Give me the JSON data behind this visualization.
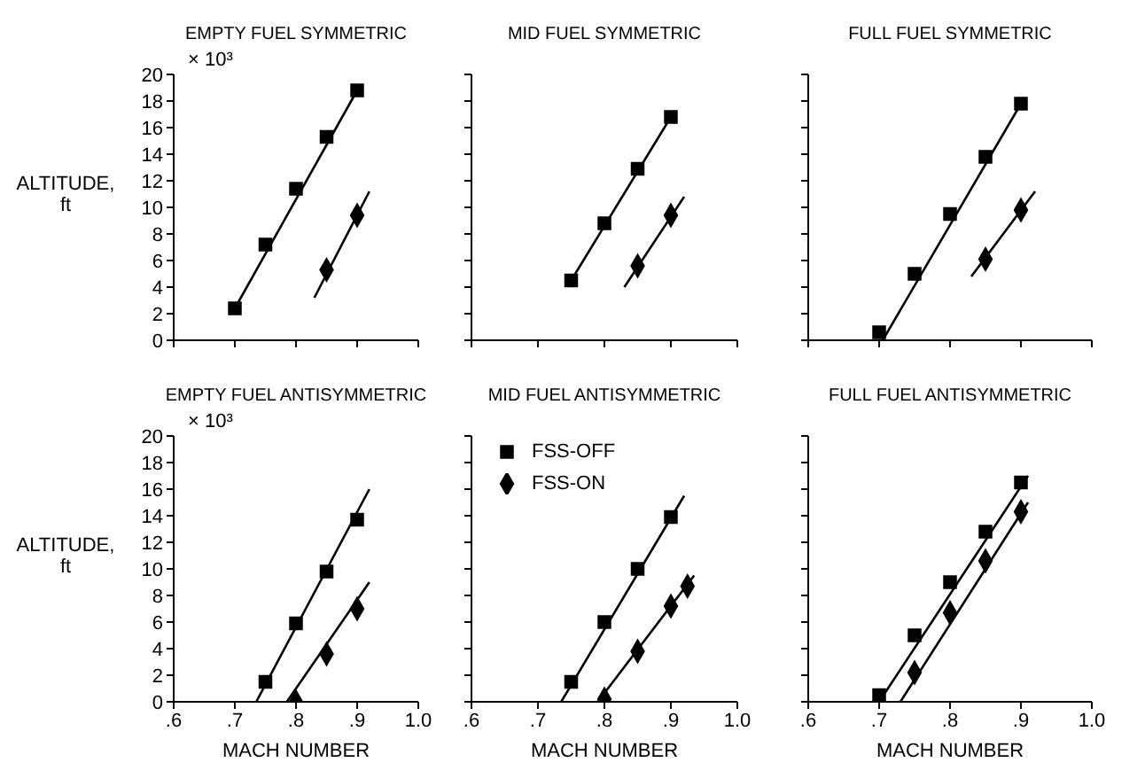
{
  "chart_data": [
    {
      "type": "scatter",
      "title": "EMPTY FUEL SYMMETRIC",
      "ylabel": "ALTITUDE, ft",
      "annotations": [
        "× 10³"
      ],
      "xlim": [
        0.6,
        1.0
      ],
      "xticks": [
        {
          "value": 0.6,
          "label": null
        },
        {
          "value": 0.7,
          "label": null
        },
        {
          "value": 0.8,
          "label": null
        },
        {
          "value": 0.9,
          "label": null
        },
        {
          "value": 1.0,
          "label": null
        }
      ],
      "ylim": [
        0,
        20
      ],
      "yticks": [
        0,
        2,
        4,
        6,
        8,
        10,
        12,
        14,
        16,
        18,
        20
      ],
      "tick_labels": "y",
      "legend": false,
      "series": [
        {
          "type": "line",
          "color": "#000000",
          "marker": "none",
          "x": [
            0.7,
            0.9
          ],
          "values": [
            2.4,
            18.8
          ]
        },
        {
          "type": "line",
          "color": "#000000",
          "marker": "none",
          "x": [
            0.83,
            0.92
          ],
          "values": [
            3.2,
            11.2
          ]
        },
        {
          "type": "scatter",
          "color": "#000000",
          "marker": "square",
          "x": [
            0.7,
            0.75,
            0.8,
            0.85,
            0.9
          ],
          "values": [
            2.4,
            7.2,
            11.4,
            15.3,
            18.8
          ]
        },
        {
          "type": "scatter",
          "color": "#000000",
          "marker": "diamond",
          "x": [
            0.85,
            0.9
          ],
          "values": [
            5.3,
            9.4
          ]
        }
      ]
    },
    {
      "type": "scatter",
      "title": "MID FUEL SYMMETRIC",
      "xlim": [
        0.6,
        1.0
      ],
      "xticks": [
        {
          "value": 0.6,
          "label": null
        },
        {
          "value": 0.7,
          "label": null
        },
        {
          "value": 0.8,
          "label": null
        },
        {
          "value": 0.9,
          "label": null
        },
        {
          "value": 1.0,
          "label": null
        }
      ],
      "ylim": [
        0,
        20
      ],
      "yticks": [
        {
          "value": 0,
          "label": null
        },
        {
          "value": 2,
          "label": null
        },
        {
          "value": 4,
          "label": null
        },
        {
          "value": 6,
          "label": null
        },
        {
          "value": 8,
          "label": null
        },
        {
          "value": 10,
          "label": null
        },
        {
          "value": 12,
          "label": null
        },
        {
          "value": 14,
          "label": null
        },
        {
          "value": 16,
          "label": null
        },
        {
          "value": 18,
          "label": null
        },
        {
          "value": 20,
          "label": null
        }
      ],
      "tick_labels": false,
      "legend": false,
      "series": [
        {
          "type": "line",
          "color": "#000000",
          "marker": "none",
          "x": [
            0.75,
            0.9
          ],
          "values": [
            4.5,
            16.8
          ]
        },
        {
          "type": "line",
          "color": "#000000",
          "marker": "none",
          "x": [
            0.83,
            0.92
          ],
          "values": [
            4.0,
            10.8
          ]
        },
        {
          "type": "scatter",
          "color": "#000000",
          "marker": "square",
          "x": [
            0.75,
            0.8,
            0.85,
            0.9
          ],
          "values": [
            4.5,
            8.8,
            12.9,
            16.8
          ]
        },
        {
          "type": "scatter",
          "color": "#000000",
          "marker": "diamond",
          "x": [
            0.85,
            0.9
          ],
          "values": [
            5.6,
            9.4
          ]
        }
      ]
    },
    {
      "type": "scatter",
      "title": "FULL FUEL SYMMETRIC",
      "xlim": [
        0.6,
        1.0
      ],
      "xticks": [
        {
          "value": 0.6,
          "label": null
        },
        {
          "value": 0.7,
          "label": null
        },
        {
          "value": 0.8,
          "label": null
        },
        {
          "value": 0.9,
          "label": null
        },
        {
          "value": 1.0,
          "label": null
        }
      ],
      "ylim": [
        0,
        20
      ],
      "yticks": [
        {
          "value": 0,
          "label": null
        },
        {
          "value": 2,
          "label": null
        },
        {
          "value": 4,
          "label": null
        },
        {
          "value": 6,
          "label": null
        },
        {
          "value": 8,
          "label": null
        },
        {
          "value": 10,
          "label": null
        },
        {
          "value": 12,
          "label": null
        },
        {
          "value": 14,
          "label": null
        },
        {
          "value": 16,
          "label": null
        },
        {
          "value": 18,
          "label": null
        },
        {
          "value": 20,
          "label": null
        }
      ],
      "tick_labels": false,
      "legend": false,
      "series": [
        {
          "type": "line",
          "color": "#000000",
          "marker": "none",
          "x": [
            0.705,
            0.9
          ],
          "values": [
            0,
            17.8
          ]
        },
        {
          "type": "line",
          "color": "#000000",
          "marker": "none",
          "x": [
            0.83,
            0.92
          ],
          "values": [
            4.8,
            11.2
          ]
        },
        {
          "type": "scatter",
          "color": "#000000",
          "marker": "square",
          "x": [
            0.7,
            0.75,
            0.8,
            0.85,
            0.9
          ],
          "values": [
            0.6,
            5.0,
            9.5,
            13.8,
            17.8
          ]
        },
        {
          "type": "scatter",
          "color": "#000000",
          "marker": "diamond",
          "x": [
            0.85,
            0.9
          ],
          "values": [
            6.1,
            9.8
          ]
        }
      ]
    },
    {
      "type": "scatter",
      "title": "EMPTY FUEL ANTISYMMETRIC",
      "xlabel": "MACH NUMBER",
      "ylabel": "ALTITUDE, ft",
      "annotations": [
        "× 10³"
      ],
      "xlim": [
        0.6,
        1.0
      ],
      "xticks": [
        {
          "value": 0.6,
          "label": ".6"
        },
        {
          "value": 0.7,
          "label": ".7"
        },
        {
          "value": 0.8,
          "label": ".8"
        },
        {
          "value": 0.9,
          "label": ".9"
        },
        {
          "value": 1.0,
          "label": "1.0"
        }
      ],
      "ylim": [
        0,
        20
      ],
      "yticks": [
        0,
        2,
        4,
        6,
        8,
        10,
        12,
        14,
        16,
        18,
        20
      ],
      "legend": false,
      "series": [
        {
          "type": "line",
          "color": "#000000",
          "marker": "none",
          "x": [
            0.735,
            0.92
          ],
          "values": [
            0,
            16
          ]
        },
        {
          "type": "line",
          "color": "#000000",
          "marker": "none",
          "x": [
            0.785,
            0.92
          ],
          "values": [
            0,
            9
          ]
        },
        {
          "type": "scatter",
          "color": "#000000",
          "marker": "square",
          "x": [
            0.75,
            0.8,
            0.85,
            0.9
          ],
          "values": [
            1.5,
            5.9,
            9.8,
            13.7
          ]
        },
        {
          "type": "scatter",
          "color": "#000000",
          "marker": "diamond",
          "x": [
            0.8,
            0.85,
            0.9
          ],
          "values": [
            0,
            3.6,
            7.0
          ]
        }
      ]
    },
    {
      "type": "scatter",
      "title": "MID FUEL ANTISYMMETRIC",
      "xlabel": "MACH NUMBER",
      "xlim": [
        0.6,
        1.0
      ],
      "xticks": [
        {
          "value": 0.6,
          "label": ".6"
        },
        {
          "value": 0.7,
          "label": ".7"
        },
        {
          "value": 0.8,
          "label": ".8"
        },
        {
          "value": 0.9,
          "label": ".9"
        },
        {
          "value": 1.0,
          "label": "1.0"
        }
      ],
      "ylim": [
        0,
        20
      ],
      "yticks": [
        {
          "value": 0,
          "label": null
        },
        {
          "value": 2,
          "label": null
        },
        {
          "value": 4,
          "label": null
        },
        {
          "value": 6,
          "label": null
        },
        {
          "value": 8,
          "label": null
        },
        {
          "value": 10,
          "label": null
        },
        {
          "value": 12,
          "label": null
        },
        {
          "value": 14,
          "label": null
        },
        {
          "value": 16,
          "label": null
        },
        {
          "value": 18,
          "label": null
        },
        {
          "value": 20,
          "label": null
        }
      ],
      "tick_labels": "x",
      "legend": "top left",
      "series": [
        {
          "type": "line",
          "color": "#000000",
          "marker": "none",
          "x": [
            0.735,
            0.92
          ],
          "values": [
            0,
            15.5
          ]
        },
        {
          "type": "line",
          "color": "#000000",
          "marker": "none",
          "x": [
            0.79,
            0.935
          ],
          "values": [
            0,
            9.5
          ]
        },
        {
          "type": "scatter",
          "name": "FSS-OFF",
          "color": "#000000",
          "marker": "square",
          "x": [
            0.75,
            0.8,
            0.85,
            0.9
          ],
          "values": [
            1.5,
            6.0,
            10.0,
            13.9
          ]
        },
        {
          "type": "scatter",
          "name": "FSS-ON",
          "color": "#000000",
          "marker": "diamond",
          "x": [
            0.8,
            0.85,
            0.9,
            0.925
          ],
          "values": [
            0.2,
            3.8,
            7.2,
            8.7
          ]
        }
      ]
    },
    {
      "type": "scatter",
      "title": "FULL FUEL ANTISYMMETRIC",
      "xlabel": "MACH NUMBER",
      "xlim": [
        0.6,
        1.0
      ],
      "xticks": [
        {
          "value": 0.6,
          "label": ".6"
        },
        {
          "value": 0.7,
          "label": ".7"
        },
        {
          "value": 0.8,
          "label": ".8"
        },
        {
          "value": 0.9,
          "label": ".9"
        },
        {
          "value": 1.0,
          "label": "1.0"
        }
      ],
      "ylim": [
        0,
        20
      ],
      "yticks": [
        {
          "value": 0,
          "label": null
        },
        {
          "value": 2,
          "label": null
        },
        {
          "value": 4,
          "label": null
        },
        {
          "value": 6,
          "label": null
        },
        {
          "value": 8,
          "label": null
        },
        {
          "value": 10,
          "label": null
        },
        {
          "value": 12,
          "label": null
        },
        {
          "value": 14,
          "label": null
        },
        {
          "value": 16,
          "label": null
        },
        {
          "value": 18,
          "label": null
        },
        {
          "value": 20,
          "label": null
        }
      ],
      "tick_labels": "x",
      "legend": false,
      "series": [
        {
          "type": "line",
          "color": "#000000",
          "marker": "none",
          "x": [
            0.7,
            0.91
          ],
          "values": [
            0,
            17
          ]
        },
        {
          "type": "line",
          "color": "#000000",
          "marker": "none",
          "x": [
            0.73,
            0.91
          ],
          "values": [
            0,
            15
          ]
        },
        {
          "type": "scatter",
          "color": "#000000",
          "marker": "square",
          "x": [
            0.7,
            0.75,
            0.8,
            0.85,
            0.9
          ],
          "values": [
            0.5,
            5.0,
            9.0,
            12.8,
            16.5
          ]
        },
        {
          "type": "scatter",
          "color": "#000000",
          "marker": "diamond",
          "x": [
            0.75,
            0.8,
            0.85,
            0.9
          ],
          "values": [
            2.2,
            6.7,
            10.6,
            14.3
          ]
        }
      ]
    }
  ]
}
